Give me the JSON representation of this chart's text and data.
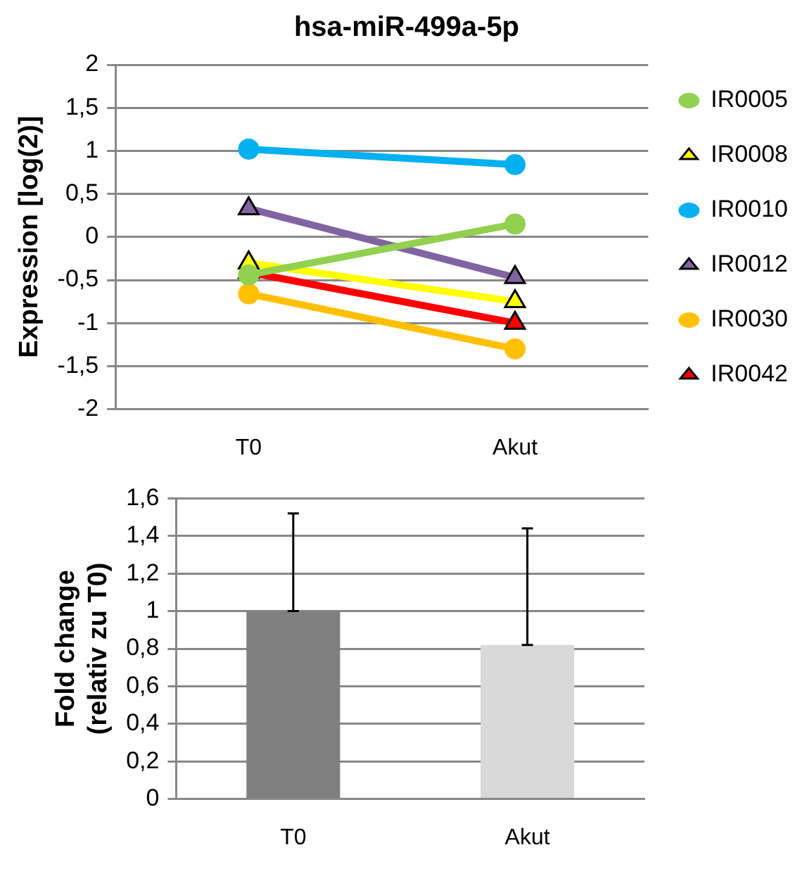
{
  "chart_data": [
    {
      "type": "line",
      "title": "hsa-miR-499a-5p",
      "ylabel": "Expression [log(2)]",
      "categories": [
        "T0",
        "Akut"
      ],
      "series": [
        {
          "name": "IR0005",
          "color": "#92d050",
          "marker": "circle",
          "values": [
            -0.44,
            0.15
          ]
        },
        {
          "name": "IR0008",
          "color": "#ffff00",
          "marker": "triangle",
          "values": [
            -0.3,
            -0.75
          ]
        },
        {
          "name": "IR0010",
          "color": "#00b0f0",
          "marker": "circle",
          "values": [
            1.02,
            0.84
          ]
        },
        {
          "name": "IR0012",
          "color": "#8064a2",
          "marker": "triangle",
          "values": [
            0.33,
            -0.47
          ]
        },
        {
          "name": "IR0030",
          "color": "#ffc000",
          "marker": "circle",
          "values": [
            -0.66,
            -1.3
          ]
        },
        {
          "name": "IR0042",
          "color": "#ff0000",
          "marker": "triangle",
          "values": [
            -0.41,
            -1.0
          ]
        }
      ],
      "ylim": [
        -2,
        2
      ],
      "yticks": [
        -2,
        {
          "value": -1.5,
          "label": "-1,5"
        },
        -1,
        {
          "value": -0.5,
          "label": "-0,5"
        },
        0,
        {
          "value": 0.5,
          "label": "0,5"
        },
        1,
        {
          "value": 1.5,
          "label": "1,5"
        },
        2
      ],
      "grid": "y",
      "legend": "right"
    },
    {
      "type": "bar",
      "ylabel": "Fold change\n(relativ zu T0)",
      "categories": [
        "T0",
        "Akut"
      ],
      "values": [
        1,
        0.82
      ],
      "colors": [
        "#808080",
        "#d9d9d9"
      ],
      "errors": [
        [
          1,
          1.52
        ],
        [
          0.82,
          1.44
        ]
      ],
      "ylim": [
        0,
        1.6
      ],
      "yticks": [
        0,
        {
          "value": 0.2,
          "label": "0,2"
        },
        {
          "value": 0.4,
          "label": "0,4"
        },
        {
          "value": 0.6,
          "label": "0,6"
        },
        {
          "value": 0.8,
          "label": "0,8"
        },
        1,
        {
          "value": 1.2,
          "label": "1,2"
        },
        {
          "value": 1.4,
          "label": "1,4"
        },
        {
          "value": 1.6,
          "label": "1,6"
        }
      ],
      "grid": "y"
    }
  ]
}
